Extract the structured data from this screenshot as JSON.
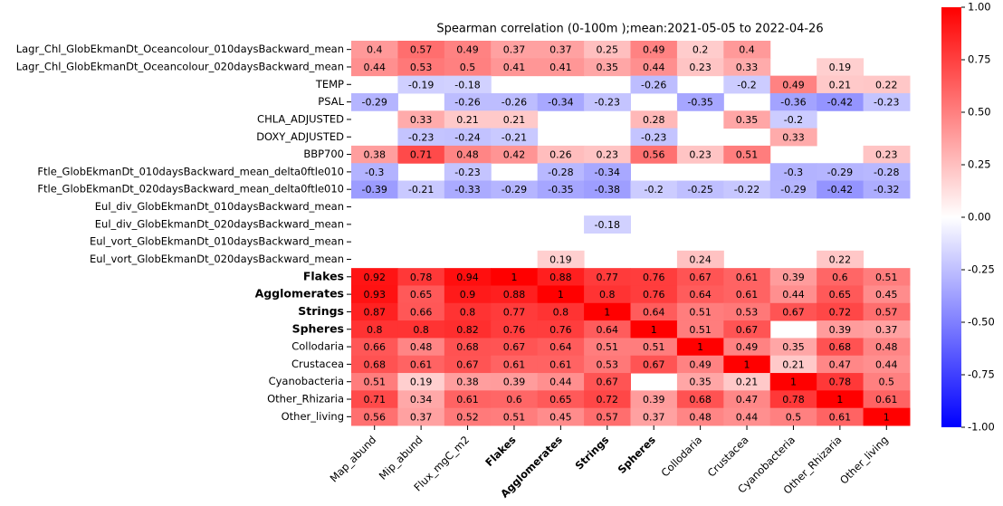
{
  "chart_data": {
    "type": "heatmap",
    "title": "Spearman correlation (0-100m );mean:2021-05-05 to 2022-04-26",
    "x_categories": [
      "Map_abund",
      "Mip_abund",
      "Flux_mgC_m2",
      "Flakes",
      "Agglomerates",
      "Strings",
      "Spheres",
      "Collodaria",
      "Crustacea",
      "Cyanobacteria",
      "Other_Rhizaria",
      "Other_living"
    ],
    "y_categories": [
      "Lagr_Chl_GlobEkmanDt_Oceancolour_010daysBackward_mean",
      "Lagr_Chl_GlobEkmanDt_Oceancolour_020daysBackward_mean",
      "TEMP",
      "PSAL",
      "CHLA_ADJUSTED",
      "DOXY_ADJUSTED",
      "BBP700",
      "Ftle_GlobEkmanDt_010daysBackward_mean_delta0ftle010",
      "Ftle_GlobEkmanDt_020daysBackward_mean_delta0ftle010",
      "Eul_div_GlobEkmanDt_010daysBackward_mean",
      "Eul_div_GlobEkmanDt_020daysBackward_mean",
      "Eul_vort_GlobEkmanDt_010daysBackward_mean",
      "Eul_vort_GlobEkmanDt_020daysBackward_mean",
      "Flakes",
      "Agglomerates",
      "Strings",
      "Spheres",
      "Collodaria",
      "Crustacea",
      "Cyanobacteria",
      "Other_Rhizaria",
      "Other_living"
    ],
    "values": [
      [
        0.4,
        0.57,
        0.49,
        0.37,
        0.37,
        0.25,
        0.49,
        0.2,
        0.4,
        null,
        null,
        null
      ],
      [
        0.44,
        0.53,
        0.5,
        0.41,
        0.41,
        0.35,
        0.44,
        0.23,
        0.33,
        null,
        0.19,
        null
      ],
      [
        null,
        -0.19,
        -0.18,
        null,
        null,
        null,
        -0.26,
        null,
        -0.2,
        0.49,
        0.21,
        0.22
      ],
      [
        -0.29,
        null,
        -0.26,
        -0.26,
        -0.34,
        -0.23,
        null,
        -0.35,
        null,
        -0.36,
        -0.42,
        -0.23
      ],
      [
        null,
        0.33,
        0.21,
        0.21,
        null,
        null,
        0.28,
        null,
        0.35,
        -0.2,
        null,
        null
      ],
      [
        null,
        -0.23,
        -0.24,
        -0.21,
        null,
        null,
        -0.23,
        null,
        null,
        0.33,
        null,
        null
      ],
      [
        0.38,
        0.71,
        0.48,
        0.42,
        0.26,
        0.23,
        0.56,
        0.23,
        0.51,
        null,
        null,
        0.23
      ],
      [
        -0.3,
        null,
        -0.23,
        null,
        -0.28,
        -0.34,
        null,
        null,
        null,
        -0.3,
        -0.29,
        -0.28
      ],
      [
        -0.39,
        -0.21,
        -0.33,
        -0.29,
        -0.35,
        -0.38,
        -0.2,
        -0.25,
        -0.22,
        -0.29,
        -0.42,
        -0.32
      ],
      [
        null,
        null,
        null,
        null,
        null,
        null,
        null,
        null,
        null,
        null,
        null,
        null
      ],
      [
        null,
        null,
        null,
        null,
        null,
        -0.18,
        null,
        null,
        null,
        null,
        null,
        null
      ],
      [
        null,
        null,
        null,
        null,
        null,
        null,
        null,
        null,
        null,
        null,
        null,
        null
      ],
      [
        null,
        null,
        null,
        null,
        0.19,
        null,
        null,
        0.24,
        null,
        null,
        0.22,
        null
      ],
      [
        0.92,
        0.78,
        0.94,
        1,
        0.88,
        0.77,
        0.76,
        0.67,
        0.61,
        0.39,
        0.6,
        0.51
      ],
      [
        0.93,
        0.65,
        0.9,
        0.88,
        1,
        0.8,
        0.76,
        0.64,
        0.61,
        0.44,
        0.65,
        0.45
      ],
      [
        0.87,
        0.66,
        0.8,
        0.77,
        0.8,
        1,
        0.64,
        0.51,
        0.53,
        0.67,
        0.72,
        0.57
      ],
      [
        0.8,
        0.8,
        0.82,
        0.76,
        0.76,
        0.64,
        1,
        0.51,
        0.67,
        null,
        0.39,
        0.37
      ],
      [
        0.66,
        0.48,
        0.68,
        0.67,
        0.64,
        0.51,
        0.51,
        1,
        0.49,
        0.35,
        0.68,
        0.48
      ],
      [
        0.68,
        0.61,
        0.67,
        0.61,
        0.61,
        0.53,
        0.67,
        0.49,
        1,
        0.21,
        0.47,
        0.44
      ],
      [
        0.51,
        0.19,
        0.38,
        0.39,
        0.44,
        0.67,
        null,
        0.35,
        0.21,
        1,
        0.78,
        0.5
      ],
      [
        0.71,
        0.34,
        0.61,
        0.6,
        0.65,
        0.72,
        0.39,
        0.68,
        0.47,
        0.78,
        1,
        0.61
      ],
      [
        0.56,
        0.37,
        0.52,
        0.51,
        0.45,
        0.57,
        0.37,
        0.48,
        0.44,
        0.5,
        0.61,
        1
      ]
    ],
    "colormap": [
      "#0000ff",
      "#ffffff",
      "#ff0000"
    ],
    "clim": [
      -1,
      1
    ],
    "cticks": [
      {
        "value": 1,
        "label": "1.00"
      },
      {
        "value": 0.75,
        "label": "0.75"
      },
      {
        "value": 0.5,
        "label": "0.50"
      },
      {
        "value": 0.25,
        "label": "0.25"
      },
      {
        "value": 0,
        "label": "0.00"
      },
      {
        "value": -0.25,
        "label": "-0.25"
      },
      {
        "value": -0.5,
        "label": "-0.50"
      },
      {
        "value": -0.75,
        "label": "-0.75"
      },
      {
        "value": -1,
        "label": "-1.00"
      }
    ]
  }
}
